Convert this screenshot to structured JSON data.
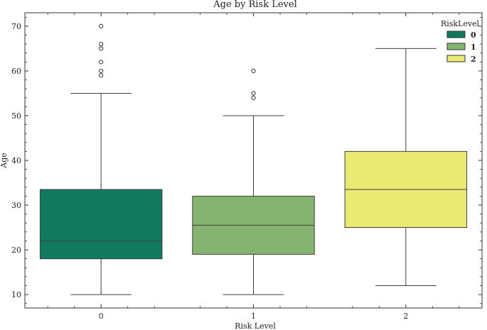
{
  "chart_data": {
    "type": "box",
    "title": "Age by Risk Level",
    "xlabel": "Risk Level",
    "ylabel": "Age",
    "categories": [
      "0",
      "1",
      "2"
    ],
    "yticks": [
      10,
      20,
      30,
      40,
      50,
      60,
      70
    ],
    "ylim": [
      7,
      73
    ],
    "grid": false,
    "legend": {
      "title": "RiskLevel",
      "position": "top-right",
      "entries": [
        "0",
        "1",
        "2"
      ]
    },
    "colors": [
      "#117a5e",
      "#84b46f",
      "#eaea72"
    ],
    "boxes": [
      {
        "category": "0",
        "whisker_low": 10,
        "q1": 18,
        "median": 22,
        "q3": 33.5,
        "whisker_high": 55,
        "outliers": [
          59,
          60,
          62,
          65,
          66,
          70
        ]
      },
      {
        "category": "1",
        "whisker_low": 10,
        "q1": 19,
        "median": 25.5,
        "q3": 32,
        "whisker_high": 50,
        "outliers": [
          54,
          55,
          60
        ]
      },
      {
        "category": "2",
        "whisker_low": 12,
        "q1": 25,
        "median": 33.5,
        "q3": 42,
        "whisker_high": 65,
        "outliers": []
      }
    ]
  }
}
